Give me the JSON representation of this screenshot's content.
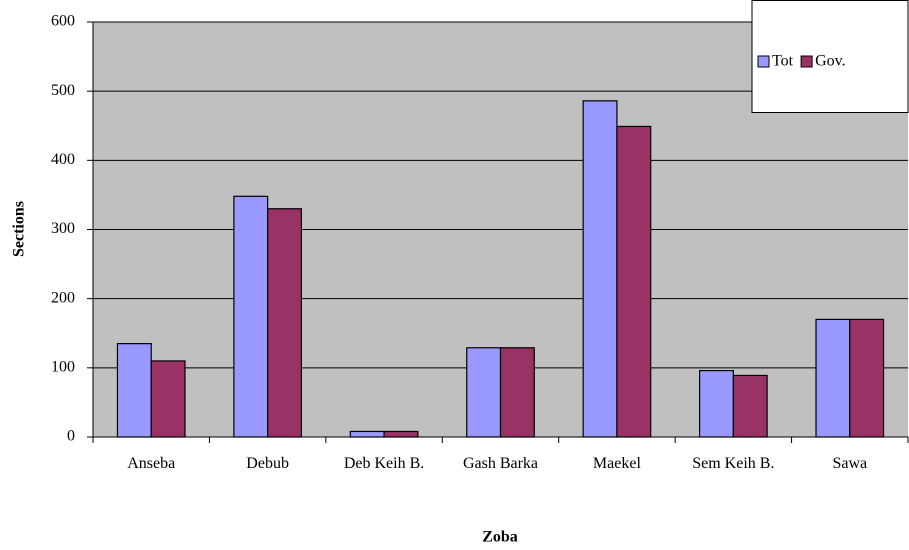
{
  "chart_data": {
    "type": "bar",
    "xlabel": "Zoba",
    "ylabel": "Sections",
    "categories": [
      "Anseba",
      "Debub",
      "Deb Keih B.",
      "Gash Barka",
      "Maekel",
      "Sem Keih B.",
      "Sawa"
    ],
    "series": [
      {
        "name": "Tot",
        "color": "#9999ff",
        "values": [
          135,
          348,
          8,
          129,
          486,
          96,
          170
        ]
      },
      {
        "name": "Gov.",
        "color": "#993366",
        "values": [
          110,
          330,
          8,
          129,
          449,
          89,
          170
        ]
      }
    ],
    "ylim": [
      0,
      600
    ],
    "yticks": [
      0,
      100,
      200,
      300,
      400,
      500,
      600
    ],
    "grid": true,
    "legend": "top-right"
  }
}
